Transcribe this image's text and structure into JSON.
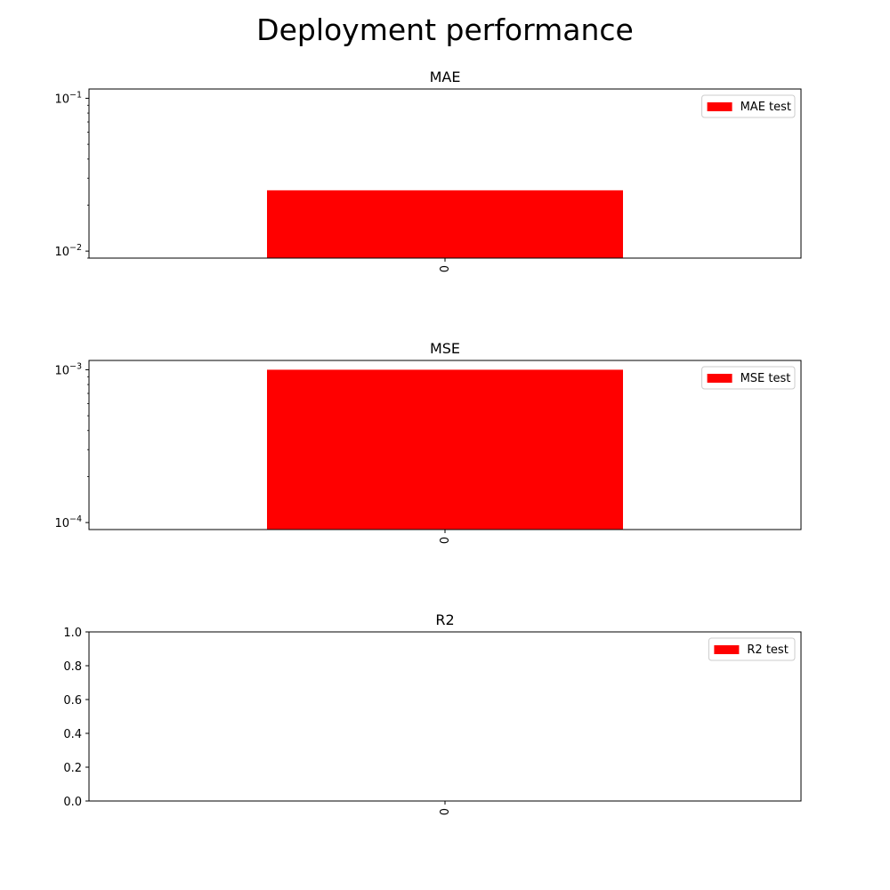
{
  "figure": {
    "title": "Deployment performance"
  },
  "chart_data": [
    {
      "type": "bar",
      "title": "MAE",
      "xlabel": "",
      "ylabel": "",
      "yscale": "log",
      "ylim": [
        0.009,
        0.115
      ],
      "yticks": [
        {
          "value": 0.01,
          "base": "10",
          "exp": "−2"
        },
        {
          "value": 0.1,
          "base": "10",
          "exp": "−1"
        }
      ],
      "categories": [
        "0"
      ],
      "series": [
        {
          "name": "MAE test",
          "values": [
            0.025
          ],
          "color": "#ff0000"
        }
      ],
      "legend": "top-right",
      "grid": false
    },
    {
      "type": "bar",
      "title": "MSE",
      "xlabel": "",
      "ylabel": "",
      "yscale": "log",
      "ylim": [
        9e-05,
        0.00115
      ],
      "yticks": [
        {
          "value": 0.0001,
          "base": "10",
          "exp": "−4"
        },
        {
          "value": 0.001,
          "base": "10",
          "exp": "−3"
        }
      ],
      "categories": [
        "0"
      ],
      "series": [
        {
          "name": "MSE test",
          "values": [
            0.001
          ],
          "color": "#ff0000"
        }
      ],
      "legend": "top-right",
      "grid": false
    },
    {
      "type": "bar",
      "title": "R2",
      "xlabel": "",
      "ylabel": "",
      "yscale": "linear",
      "ylim": [
        0,
        1
      ],
      "yticks": [
        {
          "value": 0.0,
          "label": "0.0"
        },
        {
          "value": 0.2,
          "label": "0.2"
        },
        {
          "value": 0.4,
          "label": "0.4"
        },
        {
          "value": 0.6,
          "label": "0.6"
        },
        {
          "value": 0.8,
          "label": "0.8"
        },
        {
          "value": 1.0,
          "label": "1.0"
        }
      ],
      "categories": [
        "0"
      ],
      "series": [
        {
          "name": "R2 test",
          "values": [
            null
          ],
          "color": "#ff0000"
        }
      ],
      "legend": "top-right",
      "grid": false
    }
  ]
}
